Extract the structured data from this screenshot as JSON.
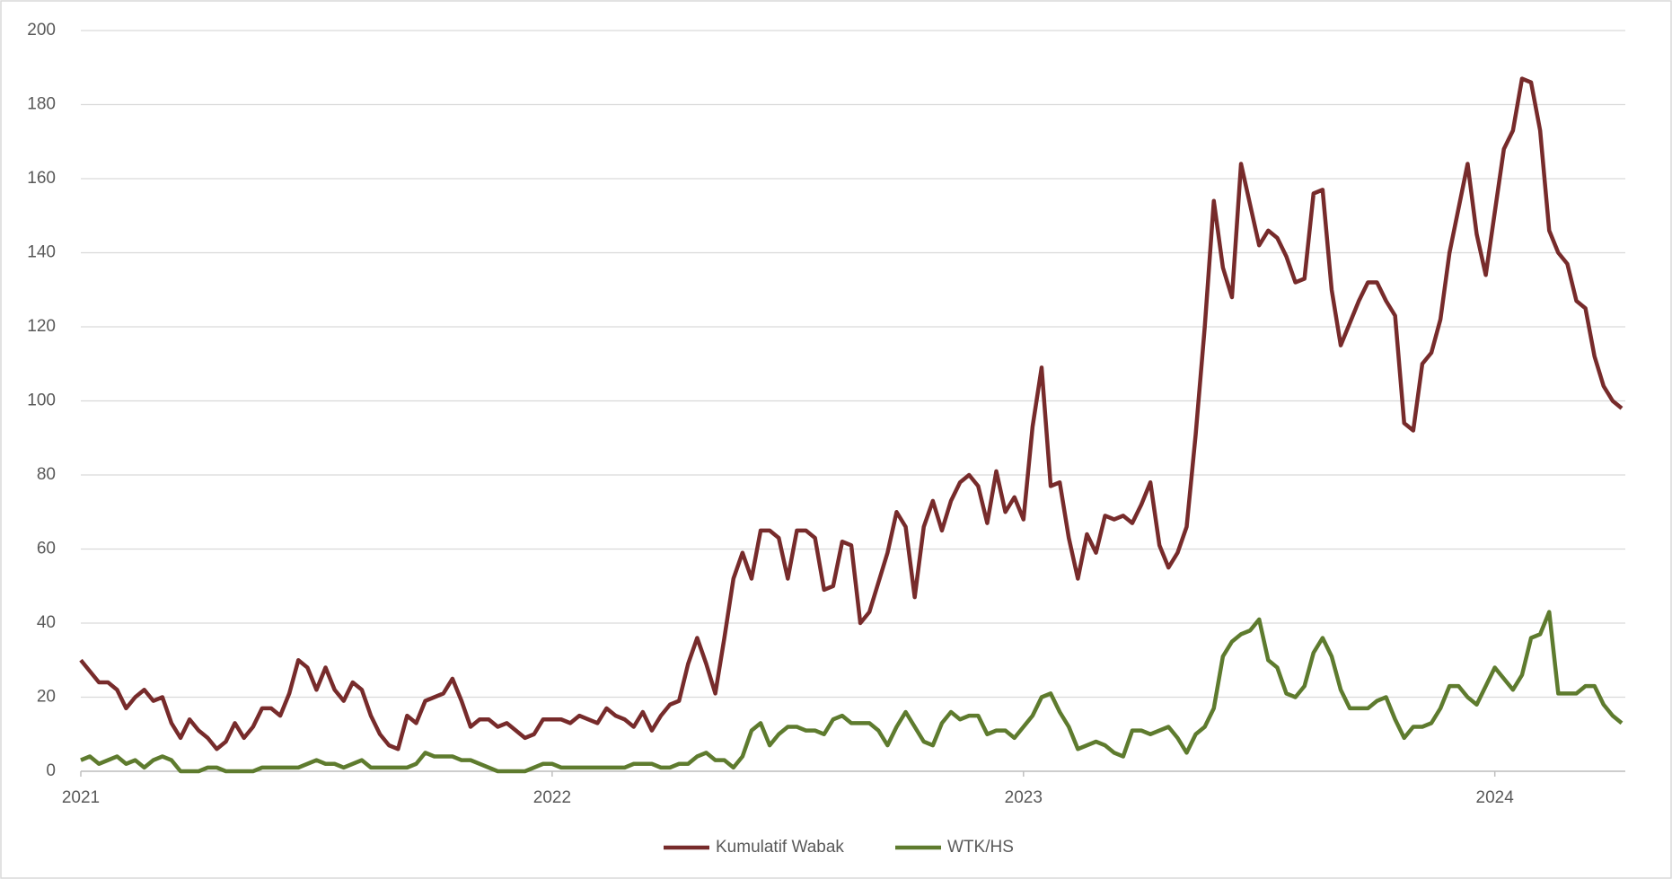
{
  "chart_data": {
    "type": "line",
    "categories": [
      "2021",
      null,
      null,
      null,
      null,
      null,
      null,
      null,
      null,
      null,
      null,
      null,
      null,
      null,
      null,
      null,
      null,
      null,
      null,
      null,
      null,
      null,
      null,
      null,
      null,
      null,
      null,
      null,
      null,
      null,
      null,
      null,
      null,
      null,
      null,
      null,
      null,
      null,
      null,
      null,
      null,
      null,
      null,
      null,
      null,
      null,
      null,
      null,
      null,
      null,
      null,
      null,
      "2022",
      null,
      null,
      null,
      null,
      null,
      null,
      null,
      null,
      null,
      null,
      null,
      null,
      null,
      null,
      null,
      null,
      null,
      null,
      null,
      null,
      null,
      null,
      null,
      null,
      null,
      null,
      null,
      null,
      null,
      null,
      null,
      null,
      null,
      null,
      null,
      null,
      null,
      null,
      null,
      null,
      null,
      null,
      null,
      null,
      null,
      null,
      null,
      null,
      null,
      null,
      null,
      "2023",
      null,
      null,
      null,
      null,
      null,
      null,
      null,
      null,
      null,
      null,
      null,
      null,
      null,
      null,
      null,
      null,
      null,
      null,
      null,
      null,
      null,
      null,
      null,
      null,
      null,
      null,
      null,
      null,
      null,
      null,
      null,
      null,
      null,
      null,
      null,
      null,
      null,
      null,
      null,
      null,
      null,
      null,
      null,
      null,
      null,
      null,
      null,
      null,
      null,
      null,
      null,
      "2024",
      null,
      null,
      null,
      null,
      null,
      null,
      null,
      null,
      null,
      null,
      null,
      null,
      null,
      null
    ],
    "series": [
      {
        "name": "Kumulatif Wabak",
        "color": "#772b2b",
        "values": [
          30,
          27,
          24,
          24,
          22,
          17,
          20,
          22,
          19,
          20,
          13,
          9,
          14,
          11,
          9,
          6,
          8,
          13,
          9,
          12,
          17,
          17,
          15,
          21,
          30,
          28,
          22,
          28,
          22,
          19,
          24,
          22,
          15,
          10,
          7,
          6,
          15,
          13,
          19,
          20,
          21,
          25,
          19,
          12,
          14,
          14,
          12,
          13,
          11,
          9,
          10,
          14,
          14,
          14,
          13,
          15,
          14,
          13,
          17,
          15,
          14,
          12,
          16,
          11,
          15,
          18,
          19,
          29,
          36,
          29,
          21,
          36,
          52,
          59,
          52,
          65,
          65,
          63,
          52,
          65,
          65,
          63,
          49,
          50,
          62,
          61,
          40,
          43,
          51,
          59,
          70,
          66,
          47,
          66,
          73,
          65,
          73,
          78,
          80,
          77,
          67,
          81,
          70,
          74,
          68,
          93,
          109,
          77,
          78,
          63,
          52,
          64,
          59,
          69,
          68,
          69,
          67,
          72,
          78,
          61,
          55,
          59,
          66,
          91,
          120,
          154,
          136,
          128,
          164,
          153,
          142,
          146,
          144,
          139,
          132,
          133,
          156,
          157,
          130,
          115,
          121,
          127,
          132,
          132,
          127,
          123,
          94,
          92,
          110,
          113,
          122,
          140,
          152,
          164,
          145,
          134,
          151,
          168,
          173,
          187,
          186,
          173,
          146,
          140,
          137,
          127,
          125,
          112,
          104,
          100,
          98
        ]
      },
      {
        "name": "WTK/HS",
        "color": "#5e7b2e",
        "values": [
          3,
          4,
          2,
          3,
          4,
          2,
          3,
          1,
          3,
          4,
          3,
          0,
          0,
          0,
          1,
          1,
          0,
          0,
          0,
          0,
          1,
          1,
          1,
          1,
          1,
          2,
          3,
          2,
          2,
          1,
          2,
          3,
          1,
          1,
          1,
          1,
          1,
          2,
          5,
          4,
          4,
          4,
          3,
          3,
          2,
          1,
          0,
          0,
          0,
          0,
          1,
          2,
          2,
          1,
          1,
          1,
          1,
          1,
          1,
          1,
          1,
          2,
          2,
          2,
          1,
          1,
          2,
          2,
          4,
          5,
          3,
          3,
          1,
          4,
          11,
          13,
          7,
          10,
          12,
          12,
          11,
          11,
          10,
          14,
          15,
          13,
          13,
          13,
          11,
          7,
          12,
          16,
          12,
          8,
          7,
          13,
          16,
          14,
          15,
          15,
          10,
          11,
          11,
          9,
          12,
          15,
          20,
          21,
          16,
          12,
          6,
          7,
          8,
          7,
          5,
          4,
          11,
          11,
          10,
          11,
          12,
          9,
          5,
          10,
          12,
          17,
          31,
          35,
          37,
          38,
          41,
          30,
          28,
          21,
          20,
          23,
          32,
          36,
          31,
          22,
          17,
          17,
          17,
          19,
          20,
          14,
          9,
          12,
          12,
          13,
          17,
          23,
          23,
          20,
          18,
          23,
          28,
          25,
          22,
          26,
          36,
          37,
          43,
          21,
          21,
          21,
          23,
          23,
          18,
          15,
          13
        ]
      }
    ],
    "ylim": [
      0,
      200
    ],
    "yticks": [
      0,
      20,
      40,
      60,
      80,
      100,
      120,
      140,
      160,
      180,
      200
    ],
    "grid": true,
    "legend": "bottom"
  }
}
